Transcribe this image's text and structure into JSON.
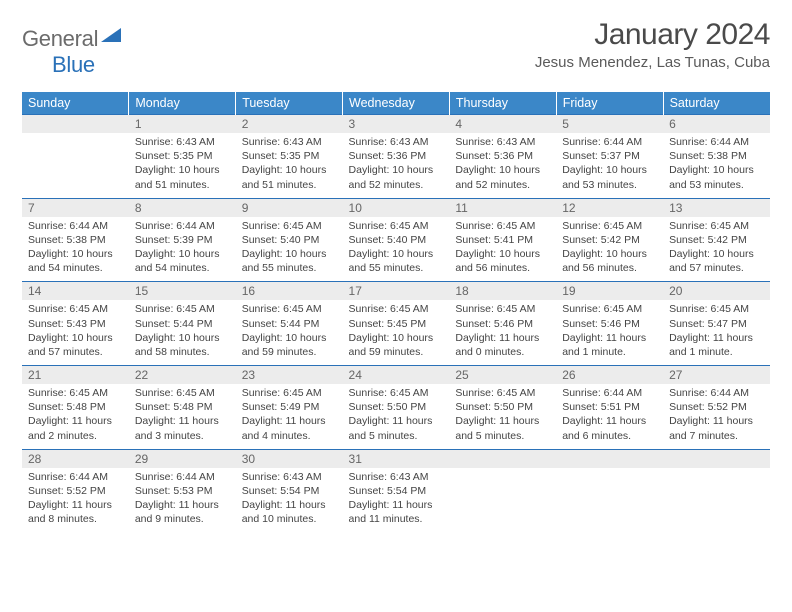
{
  "logo": {
    "general": "General",
    "blue": "Blue"
  },
  "title": "January 2024",
  "location": "Jesus Menendez, Las Tunas, Cuba",
  "colors": {
    "header_bg": "#3b87c8",
    "header_text": "#ffffff",
    "daynum_bg": "#ececec",
    "daynum_border": "#2a71b8",
    "body_text": "#444444",
    "logo_gray": "#6b6b6b",
    "logo_blue": "#2a71b8",
    "logo_triangle": "#2a71b8"
  },
  "days_of_week": [
    "Sunday",
    "Monday",
    "Tuesday",
    "Wednesday",
    "Thursday",
    "Friday",
    "Saturday"
  ],
  "weeks": [
    [
      null,
      {
        "n": "1",
        "sr": "Sunrise: 6:43 AM",
        "ss": "Sunset: 5:35 PM",
        "dl": "Daylight: 10 hours and 51 minutes."
      },
      {
        "n": "2",
        "sr": "Sunrise: 6:43 AM",
        "ss": "Sunset: 5:35 PM",
        "dl": "Daylight: 10 hours and 51 minutes."
      },
      {
        "n": "3",
        "sr": "Sunrise: 6:43 AM",
        "ss": "Sunset: 5:36 PM",
        "dl": "Daylight: 10 hours and 52 minutes."
      },
      {
        "n": "4",
        "sr": "Sunrise: 6:43 AM",
        "ss": "Sunset: 5:36 PM",
        "dl": "Daylight: 10 hours and 52 minutes."
      },
      {
        "n": "5",
        "sr": "Sunrise: 6:44 AM",
        "ss": "Sunset: 5:37 PM",
        "dl": "Daylight: 10 hours and 53 minutes."
      },
      {
        "n": "6",
        "sr": "Sunrise: 6:44 AM",
        "ss": "Sunset: 5:38 PM",
        "dl": "Daylight: 10 hours and 53 minutes."
      }
    ],
    [
      {
        "n": "7",
        "sr": "Sunrise: 6:44 AM",
        "ss": "Sunset: 5:38 PM",
        "dl": "Daylight: 10 hours and 54 minutes."
      },
      {
        "n": "8",
        "sr": "Sunrise: 6:44 AM",
        "ss": "Sunset: 5:39 PM",
        "dl": "Daylight: 10 hours and 54 minutes."
      },
      {
        "n": "9",
        "sr": "Sunrise: 6:45 AM",
        "ss": "Sunset: 5:40 PM",
        "dl": "Daylight: 10 hours and 55 minutes."
      },
      {
        "n": "10",
        "sr": "Sunrise: 6:45 AM",
        "ss": "Sunset: 5:40 PM",
        "dl": "Daylight: 10 hours and 55 minutes."
      },
      {
        "n": "11",
        "sr": "Sunrise: 6:45 AM",
        "ss": "Sunset: 5:41 PM",
        "dl": "Daylight: 10 hours and 56 minutes."
      },
      {
        "n": "12",
        "sr": "Sunrise: 6:45 AM",
        "ss": "Sunset: 5:42 PM",
        "dl": "Daylight: 10 hours and 56 minutes."
      },
      {
        "n": "13",
        "sr": "Sunrise: 6:45 AM",
        "ss": "Sunset: 5:42 PM",
        "dl": "Daylight: 10 hours and 57 minutes."
      }
    ],
    [
      {
        "n": "14",
        "sr": "Sunrise: 6:45 AM",
        "ss": "Sunset: 5:43 PM",
        "dl": "Daylight: 10 hours and 57 minutes."
      },
      {
        "n": "15",
        "sr": "Sunrise: 6:45 AM",
        "ss": "Sunset: 5:44 PM",
        "dl": "Daylight: 10 hours and 58 minutes."
      },
      {
        "n": "16",
        "sr": "Sunrise: 6:45 AM",
        "ss": "Sunset: 5:44 PM",
        "dl": "Daylight: 10 hours and 59 minutes."
      },
      {
        "n": "17",
        "sr": "Sunrise: 6:45 AM",
        "ss": "Sunset: 5:45 PM",
        "dl": "Daylight: 10 hours and 59 minutes."
      },
      {
        "n": "18",
        "sr": "Sunrise: 6:45 AM",
        "ss": "Sunset: 5:46 PM",
        "dl": "Daylight: 11 hours and 0 minutes."
      },
      {
        "n": "19",
        "sr": "Sunrise: 6:45 AM",
        "ss": "Sunset: 5:46 PM",
        "dl": "Daylight: 11 hours and 1 minute."
      },
      {
        "n": "20",
        "sr": "Sunrise: 6:45 AM",
        "ss": "Sunset: 5:47 PM",
        "dl": "Daylight: 11 hours and 1 minute."
      }
    ],
    [
      {
        "n": "21",
        "sr": "Sunrise: 6:45 AM",
        "ss": "Sunset: 5:48 PM",
        "dl": "Daylight: 11 hours and 2 minutes."
      },
      {
        "n": "22",
        "sr": "Sunrise: 6:45 AM",
        "ss": "Sunset: 5:48 PM",
        "dl": "Daylight: 11 hours and 3 minutes."
      },
      {
        "n": "23",
        "sr": "Sunrise: 6:45 AM",
        "ss": "Sunset: 5:49 PM",
        "dl": "Daylight: 11 hours and 4 minutes."
      },
      {
        "n": "24",
        "sr": "Sunrise: 6:45 AM",
        "ss": "Sunset: 5:50 PM",
        "dl": "Daylight: 11 hours and 5 minutes."
      },
      {
        "n": "25",
        "sr": "Sunrise: 6:45 AM",
        "ss": "Sunset: 5:50 PM",
        "dl": "Daylight: 11 hours and 5 minutes."
      },
      {
        "n": "26",
        "sr": "Sunrise: 6:44 AM",
        "ss": "Sunset: 5:51 PM",
        "dl": "Daylight: 11 hours and 6 minutes."
      },
      {
        "n": "27",
        "sr": "Sunrise: 6:44 AM",
        "ss": "Sunset: 5:52 PM",
        "dl": "Daylight: 11 hours and 7 minutes."
      }
    ],
    [
      {
        "n": "28",
        "sr": "Sunrise: 6:44 AM",
        "ss": "Sunset: 5:52 PM",
        "dl": "Daylight: 11 hours and 8 minutes."
      },
      {
        "n": "29",
        "sr": "Sunrise: 6:44 AM",
        "ss": "Sunset: 5:53 PM",
        "dl": "Daylight: 11 hours and 9 minutes."
      },
      {
        "n": "30",
        "sr": "Sunrise: 6:43 AM",
        "ss": "Sunset: 5:54 PM",
        "dl": "Daylight: 11 hours and 10 minutes."
      },
      {
        "n": "31",
        "sr": "Sunrise: 6:43 AM",
        "ss": "Sunset: 5:54 PM",
        "dl": "Daylight: 11 hours and 11 minutes."
      },
      null,
      null,
      null
    ]
  ]
}
